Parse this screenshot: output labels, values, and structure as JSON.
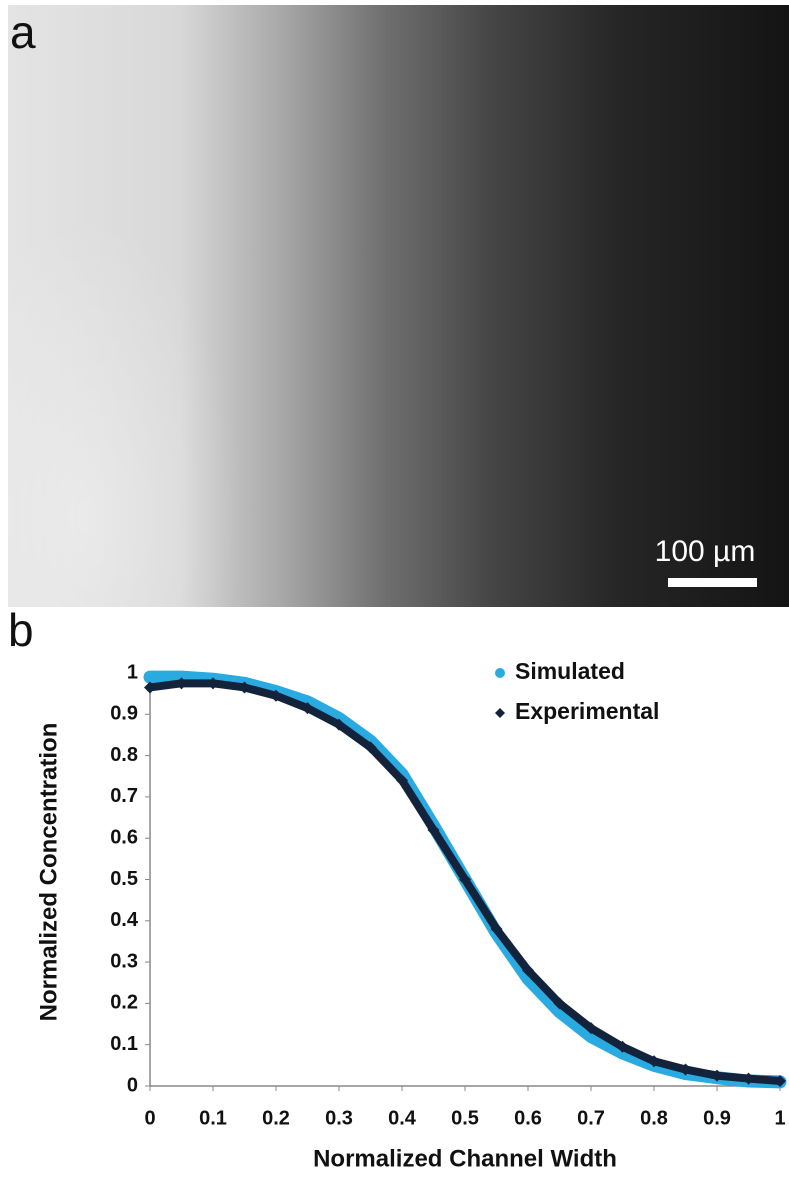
{
  "panel_a": {
    "label": "a",
    "scale_bar": "100 µm"
  },
  "panel_b": {
    "label": "b"
  },
  "chart_data": {
    "type": "scatter",
    "x_label": "Normalized Channel Width",
    "y_label": "Normalized Concentration",
    "x": [
      0,
      0.05,
      0.1,
      0.15,
      0.2,
      0.25,
      0.3,
      0.35,
      0.4,
      0.45,
      0.5,
      0.55,
      0.6,
      0.65,
      0.7,
      0.75,
      0.8,
      0.85,
      0.9,
      0.95,
      1
    ],
    "series": [
      {
        "name": "Simulated",
        "color": "#29abe2",
        "marker": "circle",
        "values": [
          0.99,
          0.99,
          0.985,
          0.975,
          0.955,
          0.93,
          0.89,
          0.835,
          0.755,
          0.63,
          0.5,
          0.37,
          0.26,
          0.18,
          0.12,
          0.08,
          0.05,
          0.03,
          0.02,
          0.012,
          0.01
        ]
      },
      {
        "name": "Experimental",
        "color": "#14233c",
        "marker": "diamond",
        "values": [
          0.965,
          0.975,
          0.975,
          0.965,
          0.945,
          0.915,
          0.875,
          0.82,
          0.74,
          0.62,
          0.5,
          0.38,
          0.28,
          0.2,
          0.14,
          0.095,
          0.06,
          0.04,
          0.025,
          0.018,
          0.012
        ]
      }
    ],
    "xlim": [
      0,
      1
    ],
    "ylim": [
      0,
      1
    ],
    "xticks": [
      0,
      0.1,
      0.2,
      0.3,
      0.4,
      0.5,
      0.6,
      0.7,
      0.8,
      0.9,
      1
    ],
    "yticks": [
      0,
      0.1,
      0.2,
      0.3,
      0.4,
      0.5,
      0.6,
      0.7,
      0.8,
      0.9,
      1
    ],
    "grid": false,
    "legend": "upper right"
  }
}
